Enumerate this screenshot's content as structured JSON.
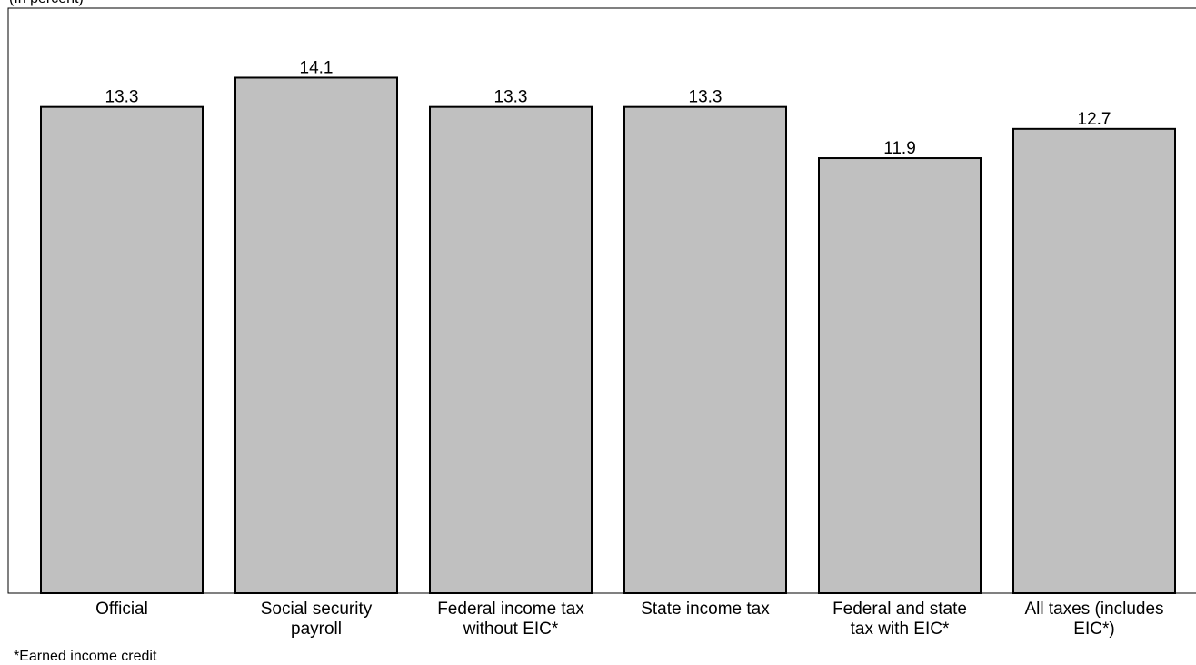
{
  "chart_data": {
    "type": "bar",
    "subtitle": "(In percent)",
    "categories": [
      "Official",
      "Social security payroll",
      "Federal income tax without EIC*",
      "State income tax",
      "Federal and state tax with EIC*",
      "All taxes (includes EIC*)"
    ],
    "values": [
      13.3,
      14.1,
      13.3,
      13.3,
      11.9,
      12.7
    ],
    "color": "#c0c0c0",
    "ylim": [
      0,
      16
    ],
    "grid": false,
    "footnote": "*Earned income credit"
  }
}
